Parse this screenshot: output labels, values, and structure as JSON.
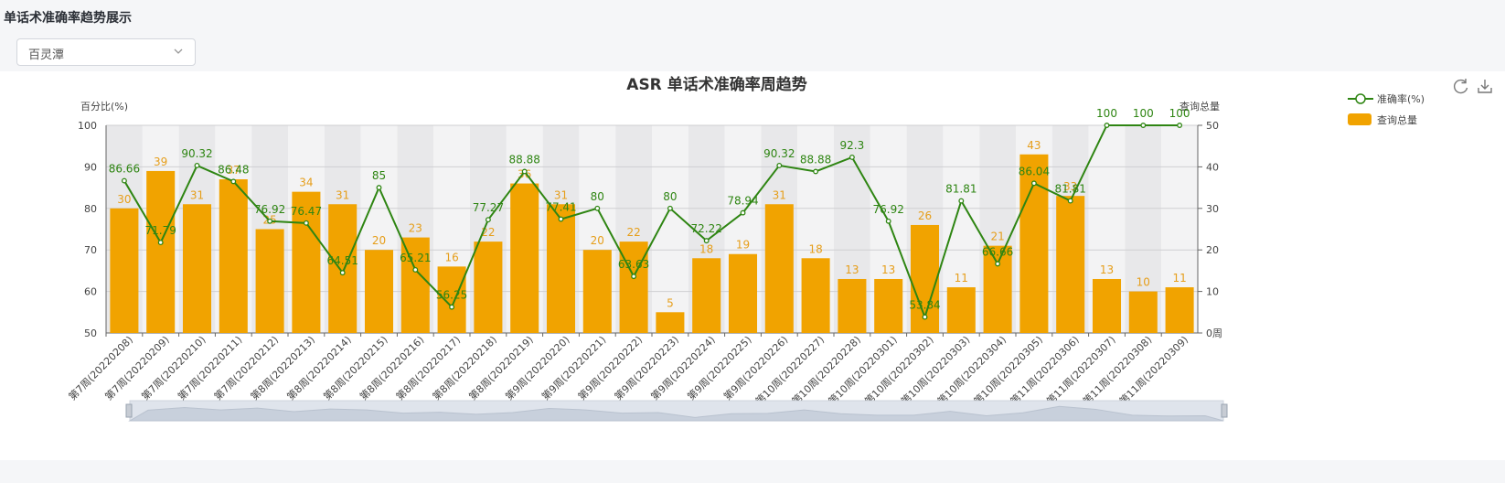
{
  "page": {
    "title": "单话术准确率趋势展示"
  },
  "filter": {
    "selected": "百灵潭"
  },
  "toolbox": {
    "refresh_icon": "refresh-icon",
    "download_icon": "download-icon"
  },
  "colors": {
    "bar": "#f1a300",
    "line": "#2e8512",
    "bar_label": "#e69e1a",
    "line_label": "#2e8512",
    "band": "#e8e8ea"
  },
  "chart_data": {
    "type": "bar+line",
    "title": "ASR 单话术准确率周趋势",
    "y_left_label": "百分比(%)",
    "y_right_label": "查询总量",
    "y_left_range": [
      50,
      100
    ],
    "y_left_ticks": [
      "50",
      "60",
      "70",
      "80",
      "90",
      "100"
    ],
    "y_right_range": [
      0,
      50
    ],
    "y_right_ticks": [
      "0周",
      "10",
      "20",
      "30",
      "40",
      "50"
    ],
    "legend_position": "top-right",
    "grid": true,
    "categories": [
      "第7周(20220208)",
      "第7周(20220209)",
      "第7周(20220210)",
      "第7周(20220211)",
      "第7周(20220212)",
      "第8周(20220213)",
      "第8周(20220214)",
      "第8周(20220215)",
      "第8周(20220216)",
      "第8周(20220217)",
      "第8周(20220218)",
      "第8周(20220219)",
      "第9周(20220220)",
      "第9周(20220221)",
      "第9周(20220222)",
      "第9周(20220223)",
      "第9周(20220224)",
      "第9周(20220225)",
      "第9周(20220226)",
      "第10周(20220227)",
      "第10周(20220228)",
      "第10周(20220301)",
      "第10周(20220302)",
      "第10周(20220303)",
      "第10周(20220304)",
      "第10周(20220305)",
      "第11周(20220306)",
      "第11周(20220307)",
      "第11周(20220308)",
      "第11周(20220309)"
    ],
    "series": [
      {
        "name": "准确率(%)",
        "type": "line",
        "axis": "left",
        "values": [
          86.66,
          71.79,
          90.32,
          86.48,
          76.92,
          76.47,
          64.51,
          85,
          65.21,
          56.25,
          77.27,
          88.88,
          77.41,
          80,
          63.63,
          80,
          72.22,
          78.94,
          90.32,
          88.88,
          92.3,
          76.92,
          53.84,
          81.81,
          66.66,
          86.04,
          81.81,
          100,
          100,
          100
        ],
        "labels": [
          "86.66",
          "71.79",
          "90.32",
          "86.48",
          "76.92",
          "76.47",
          "64.51",
          "85",
          "65.21",
          "56.25",
          "77.27",
          "88.88",
          "77.41",
          "80",
          "63.63",
          "80",
          "72.22",
          "78.94",
          "90.32",
          "88.88",
          "92.3",
          "76.92",
          "53.84",
          "81.81",
          "66.66",
          "86.04",
          "81.81",
          "100",
          "100",
          "100"
        ]
      },
      {
        "name": "查询总量",
        "type": "bar",
        "axis": "right",
        "values": [
          30,
          39,
          31,
          37,
          25,
          34,
          31,
          20,
          23,
          16,
          22,
          36,
          31,
          20,
          22,
          5,
          18,
          19,
          31,
          18,
          13,
          13,
          26,
          11,
          21,
          43,
          33,
          13,
          10,
          11
        ],
        "labels": [
          "30",
          "39",
          "31",
          "37",
          "25",
          "34",
          "31",
          "20",
          "23",
          "16",
          "22",
          "36",
          "31",
          "20",
          "22",
          "5",
          "18",
          "19",
          "31",
          "18",
          "13",
          "13",
          "26",
          "11",
          "21",
          "43",
          "33",
          "13",
          "10",
          "11"
        ]
      }
    ]
  }
}
